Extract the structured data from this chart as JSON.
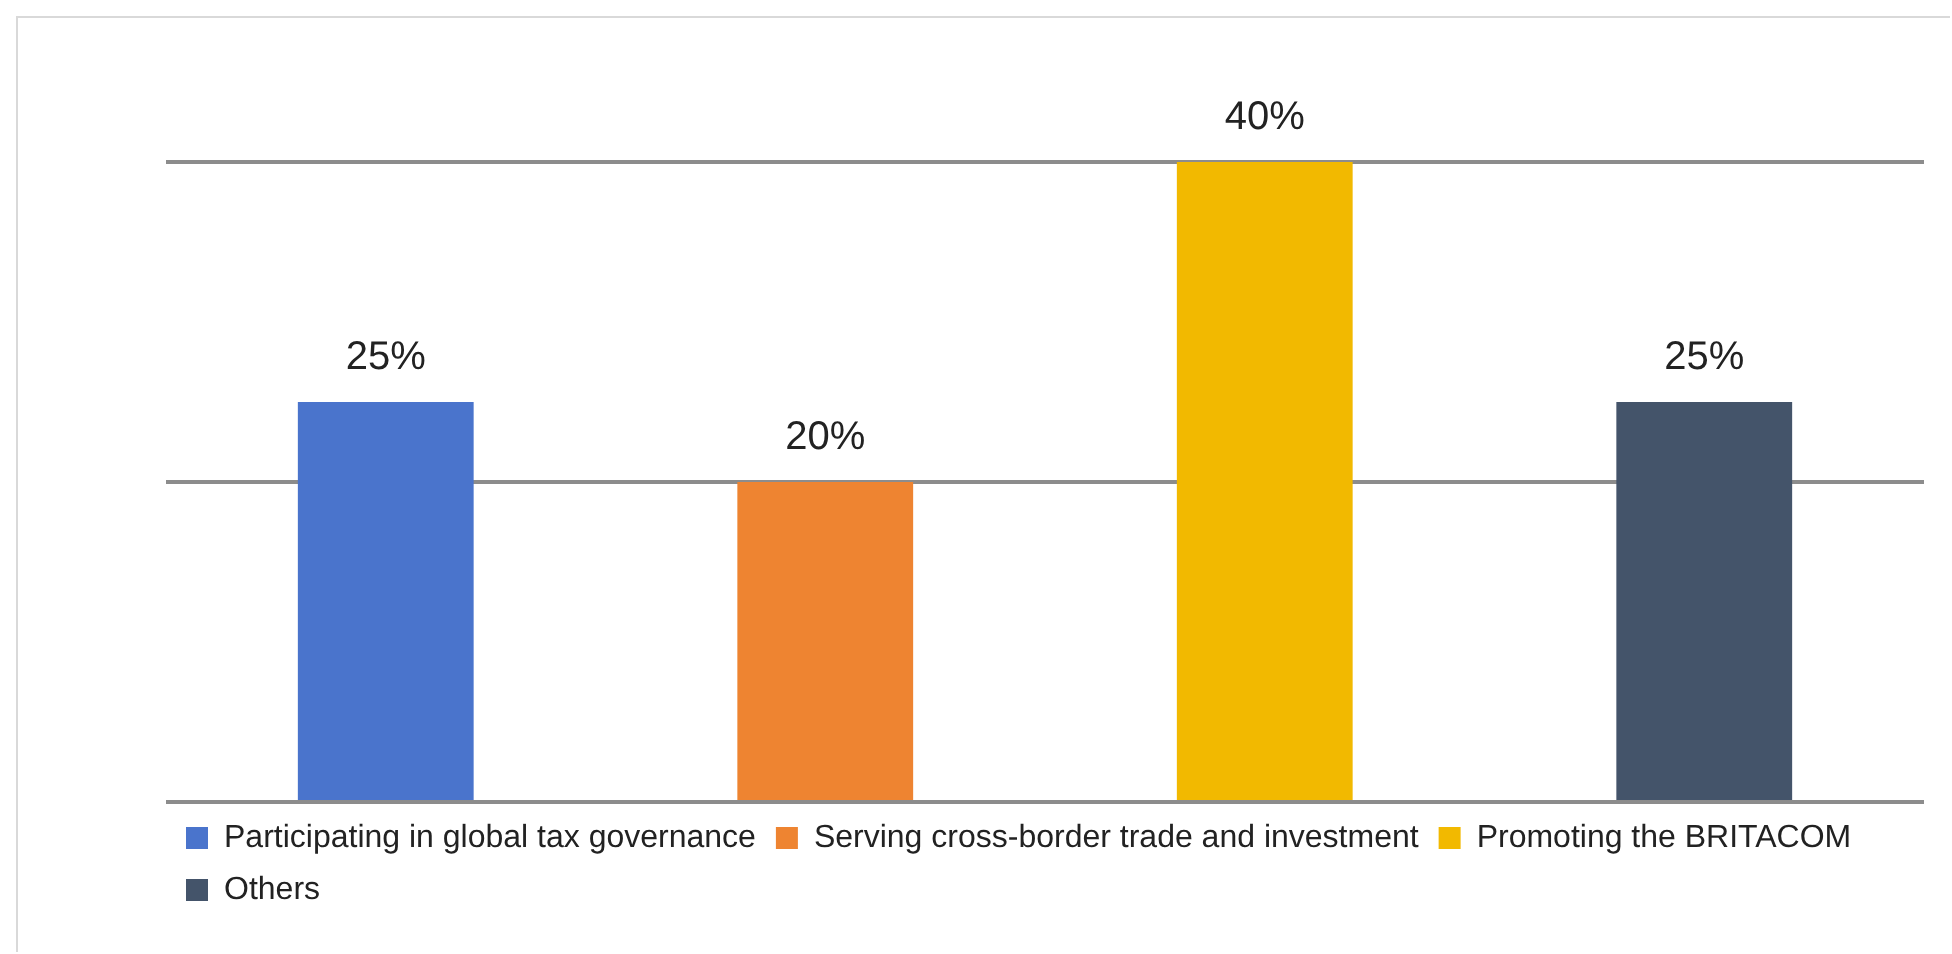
{
  "chart_data": {
    "type": "bar",
    "categories": [
      null,
      null,
      null,
      null
    ],
    "series": [
      {
        "name": "Participating in global tax governance",
        "color": "#4a74cc",
        "values": [
          25,
          null,
          null,
          null
        ],
        "value_labels": [
          "25%",
          null,
          null,
          null
        ]
      },
      {
        "name": "Serving cross-border trade and investment",
        "color": "#ee8431",
        "values": [
          null,
          20,
          null,
          null
        ],
        "value_labels": [
          null,
          "20%",
          null,
          null
        ]
      },
      {
        "name": "Promoting the BRITACOM",
        "color": "#f2b900",
        "values": [
          null,
          null,
          40,
          null
        ],
        "value_labels": [
          null,
          null,
          "40%",
          null
        ]
      },
      {
        "name": "Others",
        "color": "#44546a",
        "values": [
          null,
          null,
          null,
          25
        ],
        "value_labels": [
          null,
          null,
          null,
          "25%"
        ]
      }
    ],
    "ylim": [
      0,
      40
    ],
    "yticks": [
      {
        "value": 0,
        "label": null
      },
      {
        "value": 20,
        "label": null
      },
      {
        "value": 40,
        "label": null
      }
    ],
    "stacked": true,
    "grid": "y",
    "tick_labels": false,
    "legend": "bottom"
  }
}
